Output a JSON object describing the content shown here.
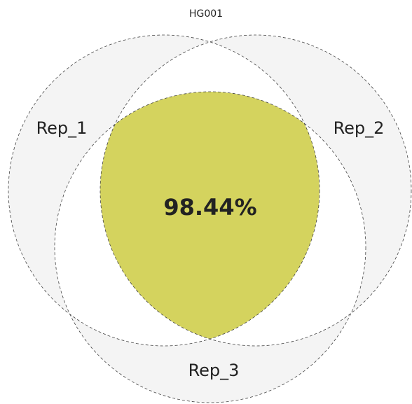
{
  "chart_data": {
    "type": "venn",
    "title": "HG001",
    "sets": [
      "Rep_1",
      "Rep_2",
      "Rep_3"
    ],
    "set_color": "#f4f4f4",
    "intersection": {
      "value": 98.44,
      "label": "98.44%"
    },
    "intersection_color": "#d4d35e"
  }
}
